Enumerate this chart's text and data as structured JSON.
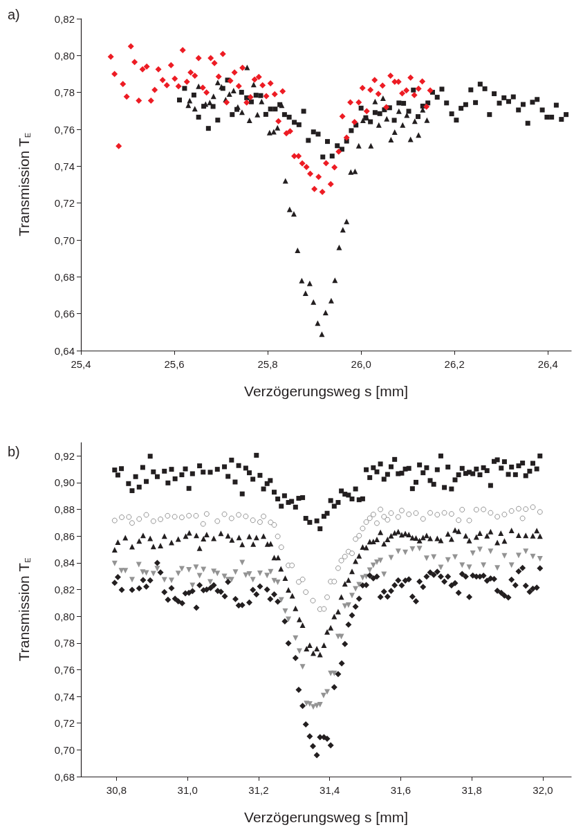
{
  "chart_data": [
    {
      "type": "scatter",
      "title": "a)",
      "xlabel": "Verzögerungsweg s [mm]",
      "ylabel": "Transmission T$_{E}$",
      "xlim": [
        25.4,
        26.45
      ],
      "ylim": [
        0.64,
        0.82
      ],
      "xticks": [
        {
          "value": 25.4,
          "label": "25,4"
        },
        {
          "value": 25.6,
          "label": "25,6"
        },
        {
          "value": 25.8,
          "label": "25,8"
        },
        {
          "value": 26.0,
          "label": "26,0"
        },
        {
          "value": 26.2,
          "label": "26,2"
        },
        {
          "value": 26.4,
          "label": "26,4"
        }
      ],
      "yticks": [
        {
          "value": 0.64,
          "label": "0,64"
        },
        {
          "value": 0.66,
          "label": "0,66"
        },
        {
          "value": 0.68,
          "label": "0,68"
        },
        {
          "value": 0.7,
          "label": "0,70"
        },
        {
          "value": 0.72,
          "label": "0,72"
        },
        {
          "value": 0.74,
          "label": "0,74"
        },
        {
          "value": 0.76,
          "label": "0,76"
        },
        {
          "value": 0.78,
          "label": "0,78"
        },
        {
          "value": 0.8,
          "label": "0,80"
        },
        {
          "value": 0.82,
          "label": "0,82"
        }
      ],
      "series": [
        {
          "color": "#231f20",
          "marker": "square",
          "x": [
            25.611,
            25.622,
            25.642,
            25.652,
            25.663,
            25.673,
            25.683,
            25.693,
            25.704,
            25.714,
            25.724,
            25.734,
            25.744,
            25.755,
            25.765,
            25.775,
            25.785,
            25.796,
            25.806,
            25.816,
            25.826,
            25.836,
            25.846,
            25.857,
            25.867,
            25.877,
            25.887,
            25.898,
            25.908,
            25.918,
            25.928,
            25.938,
            25.949,
            25.959,
            25.969,
            25.979,
            25.989,
            26.0,
            26.01,
            26.02,
            26.03,
            26.04,
            26.05,
            26.061,
            26.071,
            26.081,
            26.091,
            26.102,
            26.112,
            26.122,
            26.132,
            26.143,
            26.153,
            26.163,
            26.173,
            26.183,
            26.194,
            26.204,
            26.214,
            26.224,
            26.235,
            26.245,
            26.255,
            26.265,
            26.275,
            26.285,
            26.296,
            26.306,
            26.316,
            26.326,
            26.337,
            26.347,
            26.357,
            26.367,
            26.377,
            26.388,
            26.398,
            26.408,
            26.418,
            26.429,
            26.439
          ],
          "values": [
            0.7759,
            0.7822,
            0.7786,
            0.7666,
            0.7725,
            0.7605,
            0.7724,
            0.765,
            0.7822,
            0.7867,
            0.768,
            0.7708,
            0.7801,
            0.7771,
            0.7749,
            0.7785,
            0.7783,
            0.7681,
            0.771,
            0.771,
            0.7734,
            0.768,
            0.7666,
            0.7638,
            0.7625,
            0.7698,
            0.754,
            0.7586,
            0.7574,
            0.745,
            0.7534,
            0.7455,
            0.7511,
            0.7492,
            0.7536,
            0.7593,
            0.7623,
            0.7715,
            0.7663,
            0.7641,
            0.7691,
            0.7685,
            0.7706,
            0.7717,
            0.7649,
            0.7743,
            0.7741,
            0.7698,
            0.7813,
            0.7669,
            0.7726,
            0.7743,
            0.7801,
            0.7774,
            0.7818,
            0.7743,
            0.7684,
            0.765,
            0.7714,
            0.7734,
            0.7814,
            0.7745,
            0.7845,
            0.782,
            0.768,
            0.7793,
            0.7742,
            0.7771,
            0.7751,
            0.7776,
            0.7705,
            0.7735,
            0.7633,
            0.7747,
            0.7762,
            0.7705,
            0.7666,
            0.7666,
            0.7731,
            0.7654,
            0.768
          ]
        },
        {
          "color": "#231f20",
          "marker": "triangle",
          "x": [
            25.63,
            25.633,
            25.644,
            25.652,
            25.667,
            25.676,
            25.684,
            25.693,
            25.701,
            25.71,
            25.718,
            25.727,
            25.736,
            25.745,
            25.756,
            25.761,
            25.77,
            25.778,
            25.787,
            25.804,
            25.813,
            25.821,
            25.83,
            25.838,
            25.847,
            25.856,
            25.864,
            25.873,
            25.881,
            25.89,
            25.898,
            25.907,
            25.916,
            25.924,
            25.936,
            25.944,
            25.953,
            25.961,
            25.969,
            25.978,
            25.987,
            25.995,
            26.004,
            26.012,
            26.021,
            26.03,
            26.038,
            26.047,
            26.055,
            26.064,
            26.072,
            26.081,
            26.089,
            26.098,
            26.106,
            26.115,
            26.123,
            26.132,
            26.141
          ],
          "values": [
            0.773,
            0.7756,
            0.7712,
            0.7833,
            0.7737,
            0.7745,
            0.7779,
            0.7854,
            0.7831,
            0.7761,
            0.7791,
            0.781,
            0.7721,
            0.7693,
            0.7936,
            0.7649,
            0.7843,
            0.768,
            0.7751,
            0.7582,
            0.7587,
            0.7608,
            0.773,
            0.7321,
            0.7166,
            0.7142,
            0.6944,
            0.678,
            0.6711,
            0.6765,
            0.6663,
            0.6549,
            0.6489,
            0.6606,
            0.6671,
            0.6782,
            0.696,
            0.7055,
            0.71,
            0.7368,
            0.7372,
            0.7511,
            0.7649,
            0.7663,
            0.7511,
            0.7751,
            0.7623,
            0.7769,
            0.7657,
            0.7544,
            0.7585,
            0.7698,
            0.7623,
            0.7677,
            0.7546,
            0.7644,
            0.7569,
            0.7706,
            0.765
          ]
        },
        {
          "color": "#ed1c24",
          "marker": "diamond",
          "x": [
            25.464,
            25.472,
            25.481,
            25.49,
            25.498,
            25.507,
            25.515,
            25.524,
            25.532,
            25.541,
            25.55,
            25.558,
            25.566,
            25.575,
            25.584,
            25.593,
            25.601,
            25.609,
            25.618,
            25.627,
            25.635,
            25.644,
            25.652,
            25.661,
            25.669,
            25.678,
            25.686,
            25.695,
            25.704,
            25.712,
            25.72,
            25.729,
            25.738,
            25.746,
            25.755,
            25.763,
            25.772,
            25.781,
            25.789,
            25.797,
            25.806,
            25.815,
            25.823,
            25.832,
            25.84,
            25.848,
            25.857,
            25.866,
            25.874,
            25.883,
            25.891,
            25.9,
            25.909,
            25.917,
            25.925,
            25.935,
            25.943,
            25.952,
            25.96,
            25.969,
            25.977,
            25.986,
            25.995,
            26.003,
            26.012,
            26.02,
            26.029,
            26.037,
            26.046,
            26.054,
            26.063,
            26.072,
            26.08,
            26.088,
            26.097,
            26.106,
            26.114,
            26.123,
            26.131,
            26.14,
            26.148
          ],
          "values": [
            0.7994,
            0.79,
            0.7509,
            0.7846,
            0.7777,
            0.805,
            0.7965,
            0.7756,
            0.7925,
            0.794,
            0.7756,
            0.7814,
            0.7925,
            0.7867,
            0.7839,
            0.7948,
            0.7875,
            0.7833,
            0.8029,
            0.7858,
            0.7908,
            0.7891,
            0.7986,
            0.7826,
            0.78,
            0.7986,
            0.7959,
            0.7886,
            0.8009,
            0.7746,
            0.7863,
            0.7908,
            0.7834,
            0.7934,
            0.7745,
            0.7774,
            0.787,
            0.7884,
            0.7839,
            0.778,
            0.7849,
            0.779,
            0.7644,
            0.7806,
            0.7578,
            0.759,
            0.7455,
            0.7455,
            0.7415,
            0.7396,
            0.7359,
            0.7277,
            0.7342,
            0.7261,
            0.7416,
            0.7303,
            0.7394,
            0.7479,
            0.767,
            0.7555,
            0.7746,
            0.7639,
            0.7746,
            0.7824,
            0.7698,
            0.7814,
            0.7867,
            0.7792,
            0.7837,
            0.772,
            0.7891,
            0.7858,
            0.7858,
            0.7795,
            0.7811,
            0.788,
            0.7786,
            0.782,
            0.786,
            0.7723,
            0.7811
          ]
        }
      ]
    },
    {
      "type": "scatter",
      "title": "b)",
      "xlabel": "Verzögerungsweg s [mm]",
      "ylabel": "Transmission T$_{E}$",
      "xlim": [
        30.7,
        32.08
      ],
      "ylim": [
        0.68,
        0.93
      ],
      "xticks": [
        {
          "value": 30.8,
          "label": "30,8"
        },
        {
          "value": 31.0,
          "label": "31,0"
        },
        {
          "value": 31.2,
          "label": "31,2"
        },
        {
          "value": 31.4,
          "label": "31,4"
        },
        {
          "value": 31.6,
          "label": "31,6"
        },
        {
          "value": 31.8,
          "label": "31,8"
        },
        {
          "value": 32.0,
          "label": "32,0"
        }
      ],
      "yticks": [
        {
          "value": 0.68,
          "label": "0,68"
        },
        {
          "value": 0.7,
          "label": "0,70"
        },
        {
          "value": 0.72,
          "label": "0,72"
        },
        {
          "value": 0.74,
          "label": "0,74"
        },
        {
          "value": 0.76,
          "label": "0,76"
        },
        {
          "value": 0.78,
          "label": "0,78"
        },
        {
          "value": 0.8,
          "label": "0,80"
        },
        {
          "value": 0.82,
          "label": "0,82"
        },
        {
          "value": 0.84,
          "label": "0,84"
        },
        {
          "value": 0.86,
          "label": "0,86"
        },
        {
          "value": 0.88,
          "label": "0,88"
        },
        {
          "value": 0.9,
          "label": "0,90"
        },
        {
          "value": 0.92,
          "label": "0,92"
        }
      ],
      "series": [
        {
          "color": "#231f20",
          "marker": "square",
          "x": [
            30.795,
            30.804,
            30.814,
            30.834,
            30.844,
            30.854,
            30.864,
            30.874,
            30.884,
            30.895,
            30.904,
            30.915,
            30.935,
            30.945,
            30.955,
            30.965,
            30.984,
            30.994,
            31.004,
            31.014,
            31.034,
            31.044,
            31.064,
            31.084,
            31.104,
            31.114,
            31.124,
            31.134,
            31.144,
            31.154,
            31.164,
            31.174,
            31.184,
            31.194,
            31.204,
            31.214,
            31.224,
            31.233,
            31.244,
            31.254,
            31.264,
            31.273,
            31.284,
            31.293,
            31.304,
            31.313,
            31.324,
            31.333,
            31.344,
            31.364,
            31.373,
            31.384,
            31.393,
            31.403,
            31.413,
            31.424,
            31.433,
            31.443,
            31.453,
            31.463,
            31.473,
            31.483,
            31.493,
            31.503,
            31.513,
            31.523,
            31.533,
            31.543,
            31.553,
            31.563,
            31.573,
            31.583,
            31.593,
            31.603,
            31.613,
            31.623,
            31.633,
            31.643,
            31.653,
            31.663,
            31.673,
            31.683,
            31.693,
            31.703,
            31.713,
            31.723,
            31.733,
            31.743,
            31.753,
            31.763,
            31.773,
            31.783,
            31.793,
            31.803,
            31.813,
            31.823,
            31.833,
            31.843,
            31.853,
            31.863,
            31.872,
            31.883,
            31.892,
            31.903,
            31.912,
            31.923,
            31.932,
            31.943,
            31.952,
            31.963,
            31.972,
            31.983,
            31.992
          ],
          "values": [
            0.9095,
            0.9057,
            0.9105,
            0.8993,
            0.894,
            0.9045,
            0.8967,
            0.9114,
            0.9009,
            0.9198,
            0.9081,
            0.9045,
            0.9086,
            0.8998,
            0.91,
            0.9029,
            0.9059,
            0.9103,
            0.8957,
            0.9067,
            0.9126,
            0.9079,
            0.9078,
            0.91,
            0.9119,
            0.9047,
            0.9169,
            0.9005,
            0.9128,
            0.8916,
            0.9109,
            0.9074,
            0.9026,
            0.9205,
            0.9055,
            0.8953,
            0.8993,
            0.9016,
            0.8929,
            0.8878,
            0.8824,
            0.8902,
            0.8852,
            0.886,
            0.8817,
            0.8883,
            0.8888,
            0.8733,
            0.8703,
            0.8714,
            0.8655,
            0.8748,
            0.8771,
            0.8866,
            0.8824,
            0.8852,
            0.8938,
            0.8914,
            0.8907,
            0.8878,
            0.8953,
            0.8872,
            0.8879,
            0.9097,
            0.9038,
            0.9112,
            0.9081,
            0.914,
            0.9026,
            0.9062,
            0.9119,
            0.9174,
            0.9067,
            0.9071,
            0.9102,
            0.9107,
            0.8955,
            0.9003,
            0.9133,
            0.9074,
            0.9112,
            0.9016,
            0.8988,
            0.9097,
            0.92,
            0.8964,
            0.9117,
            0.8953,
            0.9021,
            0.9059,
            0.9107,
            0.9069,
            0.9078,
            0.9067,
            0.9102,
            0.9059,
            0.9112,
            0.909,
            0.8979,
            0.9159,
            0.9171,
            0.9109,
            0.9157,
            0.9062,
            0.9117,
            0.906,
            0.9126,
            0.9147,
            0.9052,
            0.9086,
            0.9145,
            0.9103,
            0.92
          ]
        },
        {
          "color": "#939393",
          "marker": "circle",
          "x": [
            30.795,
            30.815,
            30.835,
            30.844,
            30.864,
            30.884,
            30.904,
            30.924,
            30.944,
            30.964,
            30.984,
            31.004,
            31.024,
            31.044,
            31.054,
            31.084,
            31.104,
            31.124,
            31.144,
            31.164,
            31.184,
            31.204,
            31.214,
            31.234,
            31.244,
            31.254,
            31.264,
            31.284,
            31.294,
            31.313,
            31.324,
            31.333,
            31.353,
            31.373,
            31.384,
            31.393,
            31.403,
            31.413,
            31.424,
            31.433,
            31.443,
            31.453,
            31.463,
            31.473,
            31.483,
            31.493,
            31.503,
            31.513,
            31.523,
            31.533,
            31.543,
            31.553,
            31.563,
            31.573,
            31.593,
            31.603,
            31.623,
            31.643,
            31.663,
            31.683,
            31.703,
            31.723,
            31.743,
            31.763,
            31.773,
            31.793,
            31.813,
            31.833,
            31.853,
            31.872,
            31.892,
            31.912,
            31.932,
            31.943,
            31.952,
            31.972,
            31.992
          ],
          "values": [
            0.8717,
            0.8741,
            0.8743,
            0.8698,
            0.8728,
            0.8759,
            0.8712,
            0.8726,
            0.8752,
            0.8745,
            0.874,
            0.8753,
            0.8752,
            0.8691,
            0.8766,
            0.8712,
            0.8764,
            0.8733,
            0.8759,
            0.8748,
            0.8719,
            0.8705,
            0.8748,
            0.8703,
            0.8684,
            0.8598,
            0.8517,
            0.8381,
            0.8381,
            0.8257,
            0.8276,
            0.8181,
            0.8117,
            0.8053,
            0.8055,
            0.8143,
            0.826,
            0.826,
            0.836,
            0.8417,
            0.8447,
            0.8484,
            0.8471,
            0.8578,
            0.8603,
            0.8657,
            0.8705,
            0.8734,
            0.8762,
            0.8697,
            0.88,
            0.8745,
            0.8722,
            0.8772,
            0.8743,
            0.8791,
            0.8764,
            0.8772,
            0.8729,
            0.8774,
            0.876,
            0.8774,
            0.8766,
            0.8719,
            0.8798,
            0.8717,
            0.8798,
            0.88,
            0.8774,
            0.8745,
            0.8762,
            0.8788,
            0.8805,
            0.8733,
            0.8802,
            0.8817,
            0.8781
          ]
        },
        {
          "color": "#231f20",
          "marker": "triangle",
          "x": [
            30.795,
            30.804,
            30.825,
            30.844,
            30.864,
            30.875,
            30.895,
            30.904,
            30.924,
            30.935,
            30.955,
            30.974,
            30.995,
            31.005,
            31.025,
            31.034,
            31.045,
            31.054,
            31.074,
            31.094,
            31.114,
            31.125,
            31.145,
            31.154,
            31.174,
            31.185,
            31.194,
            31.214,
            31.225,
            31.234,
            31.244,
            31.255,
            31.263,
            31.275,
            31.284,
            31.295,
            31.304,
            31.315,
            31.324,
            31.335,
            31.344,
            31.354,
            31.364,
            31.373,
            31.384,
            31.393,
            31.403,
            31.413,
            31.424,
            31.433,
            31.443,
            31.453,
            31.463,
            31.473,
            31.483,
            31.493,
            31.503,
            31.513,
            31.523,
            31.533,
            31.543,
            31.553,
            31.563,
            31.573,
            31.583,
            31.593,
            31.603,
            31.613,
            31.623,
            31.633,
            31.643,
            31.653,
            31.663,
            31.673,
            31.683,
            31.703,
            31.713,
            31.733,
            31.743,
            31.753,
            31.763,
            31.783,
            31.793,
            31.813,
            31.823,
            31.843,
            31.853,
            31.872,
            31.882,
            31.892,
            31.912,
            31.932,
            31.952,
            31.972,
            31.983,
            31.992
          ],
          "values": [
            0.8498,
            0.8555,
            0.8588,
            0.8521,
            0.8564,
            0.8605,
            0.8583,
            0.8522,
            0.8529,
            0.86,
            0.8552,
            0.8578,
            0.86,
            0.8624,
            0.8605,
            0.8509,
            0.8581,
            0.8612,
            0.8583,
            0.8621,
            0.8603,
            0.8572,
            0.859,
            0.8538,
            0.8597,
            0.8541,
            0.859,
            0.86,
            0.854,
            0.8543,
            0.844,
            0.844,
            0.8355,
            0.8286,
            0.8197,
            0.8153,
            0.8059,
            0.7976,
            0.7933,
            0.7757,
            0.7784,
            0.7724,
            0.7757,
            0.7714,
            0.7784,
            0.7883,
            0.7914,
            0.7998,
            0.8034,
            0.8145,
            0.8243,
            0.8271,
            0.8336,
            0.8412,
            0.8453,
            0.8519,
            0.8514,
            0.8559,
            0.856,
            0.8576,
            0.8629,
            0.8543,
            0.8576,
            0.8602,
            0.8624,
            0.8633,
            0.861,
            0.8619,
            0.8612,
            0.8588,
            0.8586,
            0.8566,
            0.859,
            0.8605,
            0.8583,
            0.8583,
            0.8567,
            0.8617,
            0.8578,
            0.8645,
            0.8636,
            0.8602,
            0.8566,
            0.8593,
            0.8622,
            0.8602,
            0.8634,
            0.8552,
            0.8622,
            0.8564,
            0.8643,
            0.8607,
            0.8605,
            0.8602,
            0.8641,
            0.86
          ]
        },
        {
          "color": "#939393",
          "marker": "triangle-down",
          "x": [
            30.795,
            30.814,
            30.825,
            30.844,
            30.863,
            30.874,
            30.884,
            30.904,
            30.915,
            30.935,
            30.955,
            30.974,
            30.984,
            31.004,
            31.014,
            31.024,
            31.034,
            31.045,
            31.064,
            31.074,
            31.084,
            31.104,
            31.114,
            31.124,
            31.135,
            31.154,
            31.164,
            31.174,
            31.184,
            31.204,
            31.224,
            31.234,
            31.244,
            31.254,
            31.264,
            31.275,
            31.284,
            31.304,
            31.315,
            31.324,
            31.335,
            31.344,
            31.354,
            31.364,
            31.373,
            31.383,
            31.393,
            31.403,
            31.413,
            31.424,
            31.433,
            31.443,
            31.453,
            31.463,
            31.473,
            31.483,
            31.493,
            31.503,
            31.513,
            31.523,
            31.533,
            31.543,
            31.553,
            31.573,
            31.593,
            31.613,
            31.633,
            31.653,
            31.673,
            31.693,
            31.713,
            31.733,
            31.753,
            31.773,
            31.793,
            31.803,
            31.823,
            31.833,
            31.853,
            31.872,
            31.892,
            31.912,
            31.932,
            31.952,
            31.972,
            31.992
          ],
          "values": [
            0.8395,
            0.8341,
            0.8341,
            0.8274,
            0.8386,
            0.8331,
            0.8324,
            0.8319,
            0.8357,
            0.8272,
            0.8269,
            0.8321,
            0.8355,
            0.8347,
            0.8231,
            0.8367,
            0.8303,
            0.835,
            0.8257,
            0.8336,
            0.8321,
            0.8298,
            0.8274,
            0.8274,
            0.8331,
            0.8402,
            0.8307,
            0.8316,
            0.8274,
            0.8322,
            0.8305,
            0.8334,
            0.8266,
            0.8255,
            0.8122,
            0.8038,
            0.7978,
            0.7836,
            0.774,
            0.7622,
            0.7348,
            0.7343,
            0.7321,
            0.7331,
            0.7338,
            0.7407,
            0.7434,
            0.7572,
            0.7572,
            0.7848,
            0.7848,
            0.8076,
            0.8083,
            0.8155,
            0.8205,
            0.8236,
            0.8288,
            0.8297,
            0.8345,
            0.8381,
            0.8405,
            0.8417,
            0.8314,
            0.8438,
            0.8486,
            0.8478,
            0.8503,
            0.8507,
            0.8434,
            0.8443,
            0.8366,
            0.8422,
            0.8443,
            0.8383,
            0.8367,
            0.8472,
            0.85,
            0.8383,
            0.8486,
            0.8362,
            0.8452,
            0.8383,
            0.8455,
            0.8486,
            0.8447,
            0.8431
          ]
        },
        {
          "color": "#231f20",
          "marker": "diamond",
          "x": [
            30.795,
            30.804,
            30.815,
            30.844,
            30.864,
            30.875,
            30.884,
            30.895,
            30.915,
            30.924,
            30.935,
            30.945,
            30.955,
            30.965,
            30.974,
            30.985,
            30.994,
            31.004,
            31.014,
            31.025,
            31.034,
            31.045,
            31.054,
            31.065,
            31.074,
            31.085,
            31.094,
            31.105,
            31.114,
            31.135,
            31.144,
            31.154,
            31.174,
            31.184,
            31.194,
            31.204,
            31.224,
            31.233,
            31.244,
            31.254,
            31.274,
            31.284,
            31.304,
            31.313,
            31.324,
            31.333,
            31.344,
            31.353,
            31.364,
            31.373,
            31.384,
            31.393,
            31.403,
            31.413,
            31.424,
            31.434,
            31.443,
            31.453,
            31.463,
            31.473,
            31.483,
            31.493,
            31.503,
            31.513,
            31.523,
            31.533,
            31.543,
            31.553,
            31.563,
            31.573,
            31.583,
            31.593,
            31.603,
            31.613,
            31.623,
            31.633,
            31.643,
            31.653,
            31.663,
            31.673,
            31.683,
            31.693,
            31.703,
            31.713,
            31.723,
            31.733,
            31.743,
            31.753,
            31.763,
            31.773,
            31.783,
            31.793,
            31.803,
            31.813,
            31.823,
            31.833,
            31.843,
            31.853,
            31.863,
            31.872,
            31.883,
            31.892,
            31.903,
            31.912,
            31.923,
            31.932,
            31.943,
            31.952,
            31.963,
            31.972,
            31.983,
            31.992
          ],
          "values": [
            0.825,
            0.8293,
            0.8197,
            0.8197,
            0.8209,
            0.8271,
            0.8222,
            0.8269,
            0.84,
            0.8328,
            0.8181,
            0.8124,
            0.821,
            0.8131,
            0.8112,
            0.8098,
            0.8172,
            0.8176,
            0.8188,
            0.8064,
            0.8233,
            0.8195,
            0.82,
            0.8212,
            0.8233,
            0.819,
            0.8183,
            0.815,
            0.8257,
            0.8129,
            0.8081,
            0.8083,
            0.8103,
            0.8197,
            0.8164,
            0.8224,
            0.82,
            0.8129,
            0.8164,
            0.8109,
            0.7962,
            0.7798,
            0.7688,
            0.745,
            0.7329,
            0.7191,
            0.7102,
            0.7028,
            0.696,
            0.7095,
            0.7095,
            0.7083,
            0.7034,
            0.7469,
            0.7567,
            0.7647,
            0.7793,
            0.7938,
            0.8007,
            0.8072,
            0.8131,
            0.8231,
            0.8234,
            0.8305,
            0.8284,
            0.8297,
            0.8145,
            0.8184,
            0.8147,
            0.819,
            0.8233,
            0.8269,
            0.8231,
            0.8267,
            0.8276,
            0.8147,
            0.8112,
            0.8259,
            0.8219,
            0.8297,
            0.8328,
            0.831,
            0.8333,
            0.8297,
            0.8259,
            0.8297,
            0.8231,
            0.8248,
            0.8176,
            0.8317,
            0.8297,
            0.8145,
            0.8305,
            0.8297,
            0.8297,
            0.8303,
            0.8266,
            0.8283,
            0.8279,
            0.8191,
            0.8176,
            0.8155,
            0.8141,
            0.8274,
            0.8233,
            0.8336,
            0.8362,
            0.8228,
            0.8183,
            0.8207,
            0.8214,
            0.8359
          ]
        }
      ]
    }
  ]
}
